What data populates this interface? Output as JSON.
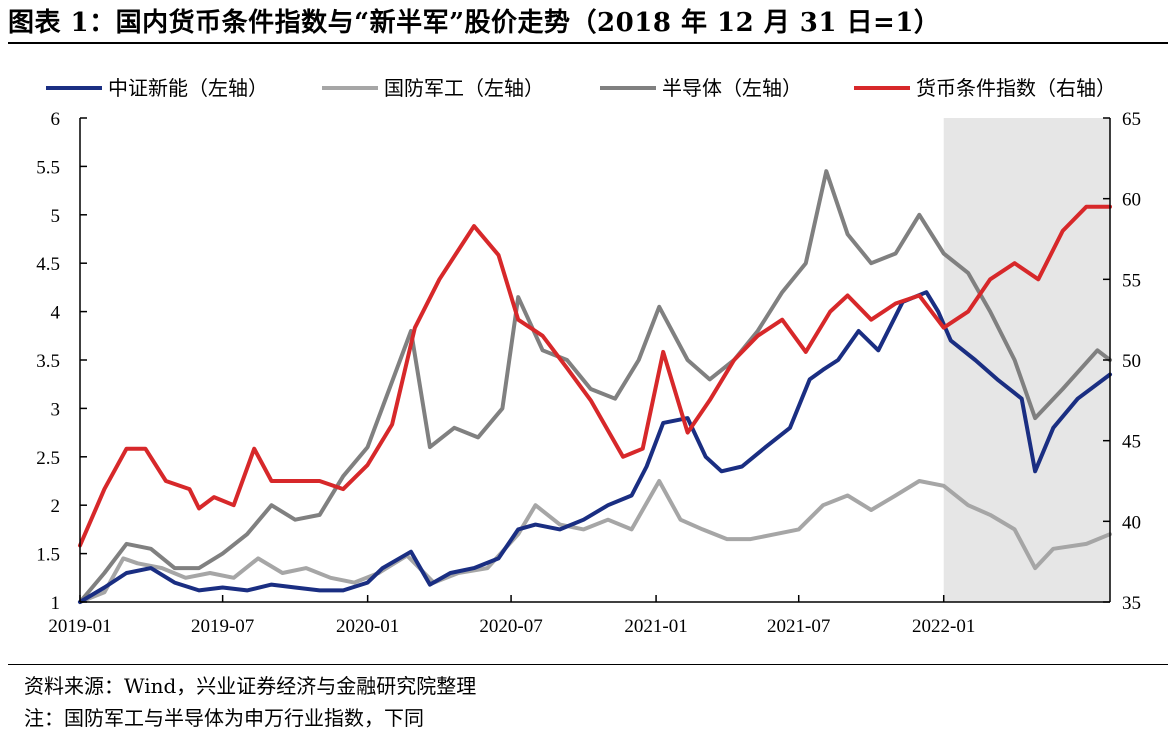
{
  "title": "图表 1：国内货币条件指数与“新半军”股价走势（2018 年 12 月 31 日=1）",
  "source": "资料来源：Wind，兴业证券经济与金融研究院整理",
  "note": "注：国防军工与半导体为申万行业指数，下同",
  "chart_data": {
    "type": "line",
    "legend_position": "top",
    "grid": false,
    "x_ticks": [
      "2019-01",
      "2019-07",
      "2020-01",
      "2020-07",
      "2021-01",
      "2021-07",
      "2022-01"
    ],
    "x_range": [
      "2019-01-01",
      "2022-07-31"
    ],
    "y_left": {
      "range": [
        1,
        6
      ],
      "ticks": [
        "1",
        "1.5",
        "2",
        "2.5",
        "3",
        "3.5",
        "4",
        "4.5",
        "5",
        "5.5",
        "6"
      ]
    },
    "y_right": {
      "range": [
        35,
        65
      ],
      "ticks": [
        "35",
        "40",
        "45",
        "50",
        "55",
        "60",
        "65"
      ]
    },
    "shaded_region": {
      "from": "2022-01-01",
      "to": "2022-07-31",
      "color": "#e6e6e6"
    },
    "series": [
      {
        "name": "中证新能（左轴）",
        "axis": "left",
        "color": "#1a2e82",
        "width": 4,
        "points": [
          [
            "2019-01-01",
            1.0
          ],
          [
            "2019-02-01",
            1.15
          ],
          [
            "2019-03-01",
            1.3
          ],
          [
            "2019-04-01",
            1.35
          ],
          [
            "2019-05-01",
            1.2
          ],
          [
            "2019-06-01",
            1.12
          ],
          [
            "2019-07-01",
            1.15
          ],
          [
            "2019-08-01",
            1.12
          ],
          [
            "2019-09-01",
            1.18
          ],
          [
            "2019-10-01",
            1.15
          ],
          [
            "2019-11-01",
            1.12
          ],
          [
            "2019-12-01",
            1.12
          ],
          [
            "2020-01-01",
            1.2
          ],
          [
            "2020-01-20",
            1.35
          ],
          [
            "2020-02-25",
            1.52
          ],
          [
            "2020-03-20",
            1.18
          ],
          [
            "2020-04-15",
            1.3
          ],
          [
            "2020-05-15",
            1.35
          ],
          [
            "2020-06-15",
            1.45
          ],
          [
            "2020-07-10",
            1.75
          ],
          [
            "2020-08-01",
            1.8
          ],
          [
            "2020-09-01",
            1.75
          ],
          [
            "2020-10-01",
            1.85
          ],
          [
            "2020-11-01",
            2.0
          ],
          [
            "2020-12-01",
            2.1
          ],
          [
            "2020-12-20",
            2.4
          ],
          [
            "2021-01-10",
            2.85
          ],
          [
            "2021-02-10",
            2.9
          ],
          [
            "2021-03-05",
            2.5
          ],
          [
            "2021-03-25",
            2.35
          ],
          [
            "2021-04-20",
            2.4
          ],
          [
            "2021-05-20",
            2.6
          ],
          [
            "2021-06-20",
            2.8
          ],
          [
            "2021-07-15",
            3.3
          ],
          [
            "2021-08-01",
            3.4
          ],
          [
            "2021-08-20",
            3.5
          ],
          [
            "2021-09-15",
            3.8
          ],
          [
            "2021-10-10",
            3.6
          ],
          [
            "2021-11-10",
            4.1
          ],
          [
            "2021-12-10",
            4.2
          ],
          [
            "2021-12-25",
            4.0
          ],
          [
            "2022-01-10",
            3.7
          ],
          [
            "2022-02-10",
            3.5
          ],
          [
            "2022-03-10",
            3.3
          ],
          [
            "2022-04-10",
            3.1
          ],
          [
            "2022-04-27",
            2.35
          ],
          [
            "2022-05-20",
            2.8
          ],
          [
            "2022-06-20",
            3.1
          ],
          [
            "2022-07-31",
            3.35
          ]
        ]
      },
      {
        "name": "国防军工（左轴）",
        "axis": "left",
        "color": "#a6a6a6",
        "width": 4,
        "points": [
          [
            "2019-01-01",
            1.0
          ],
          [
            "2019-02-01",
            1.1
          ],
          [
            "2019-02-25",
            1.45
          ],
          [
            "2019-03-15",
            1.4
          ],
          [
            "2019-04-15",
            1.35
          ],
          [
            "2019-05-15",
            1.25
          ],
          [
            "2019-06-15",
            1.3
          ],
          [
            "2019-07-15",
            1.25
          ],
          [
            "2019-08-15",
            1.45
          ],
          [
            "2019-09-15",
            1.3
          ],
          [
            "2019-10-15",
            1.35
          ],
          [
            "2019-11-15",
            1.25
          ],
          [
            "2019-12-15",
            1.2
          ],
          [
            "2020-01-15",
            1.3
          ],
          [
            "2020-02-20",
            1.48
          ],
          [
            "2020-03-25",
            1.2
          ],
          [
            "2020-04-25",
            1.3
          ],
          [
            "2020-06-01",
            1.35
          ],
          [
            "2020-07-10",
            1.7
          ],
          [
            "2020-08-01",
            2.0
          ],
          [
            "2020-09-01",
            1.8
          ],
          [
            "2020-10-01",
            1.75
          ],
          [
            "2020-11-01",
            1.85
          ],
          [
            "2020-12-01",
            1.75
          ],
          [
            "2021-01-05",
            2.25
          ],
          [
            "2021-02-01",
            1.85
          ],
          [
            "2021-03-01",
            1.75
          ],
          [
            "2021-04-01",
            1.65
          ],
          [
            "2021-05-01",
            1.65
          ],
          [
            "2021-06-01",
            1.7
          ],
          [
            "2021-07-01",
            1.75
          ],
          [
            "2021-08-01",
            2.0
          ],
          [
            "2021-09-01",
            2.1
          ],
          [
            "2021-10-01",
            1.95
          ],
          [
            "2021-11-01",
            2.1
          ],
          [
            "2021-12-01",
            2.25
          ],
          [
            "2022-01-01",
            2.2
          ],
          [
            "2022-02-01",
            2.0
          ],
          [
            "2022-03-01",
            1.9
          ],
          [
            "2022-04-01",
            1.75
          ],
          [
            "2022-04-27",
            1.35
          ],
          [
            "2022-05-20",
            1.55
          ],
          [
            "2022-07-01",
            1.6
          ],
          [
            "2022-07-31",
            1.7
          ]
        ]
      },
      {
        "name": "半导体（左轴）",
        "axis": "left",
        "color": "#808080",
        "width": 4,
        "points": [
          [
            "2019-01-01",
            1.0
          ],
          [
            "2019-02-01",
            1.3
          ],
          [
            "2019-03-01",
            1.6
          ],
          [
            "2019-04-01",
            1.55
          ],
          [
            "2019-05-01",
            1.35
          ],
          [
            "2019-06-01",
            1.35
          ],
          [
            "2019-07-01",
            1.5
          ],
          [
            "2019-08-01",
            1.7
          ],
          [
            "2019-09-01",
            2.0
          ],
          [
            "2019-10-01",
            1.85
          ],
          [
            "2019-11-01",
            1.9
          ],
          [
            "2019-12-01",
            2.3
          ],
          [
            "2020-01-01",
            2.6
          ],
          [
            "2020-02-25",
            3.8
          ],
          [
            "2020-03-20",
            2.6
          ],
          [
            "2020-04-20",
            2.8
          ],
          [
            "2020-05-20",
            2.7
          ],
          [
            "2020-06-20",
            3.0
          ],
          [
            "2020-07-10",
            4.15
          ],
          [
            "2020-08-10",
            3.6
          ],
          [
            "2020-09-10",
            3.5
          ],
          [
            "2020-10-10",
            3.2
          ],
          [
            "2020-11-10",
            3.1
          ],
          [
            "2020-12-10",
            3.5
          ],
          [
            "2021-01-05",
            4.05
          ],
          [
            "2021-02-10",
            3.5
          ],
          [
            "2021-03-10",
            3.3
          ],
          [
            "2021-04-10",
            3.5
          ],
          [
            "2021-05-10",
            3.8
          ],
          [
            "2021-06-10",
            4.2
          ],
          [
            "2021-07-10",
            4.5
          ],
          [
            "2021-08-05",
            5.45
          ],
          [
            "2021-09-01",
            4.8
          ],
          [
            "2021-10-01",
            4.5
          ],
          [
            "2021-11-01",
            4.6
          ],
          [
            "2021-12-01",
            5.0
          ],
          [
            "2022-01-01",
            4.6
          ],
          [
            "2022-02-01",
            4.4
          ],
          [
            "2022-03-01",
            4.0
          ],
          [
            "2022-04-01",
            3.5
          ],
          [
            "2022-04-27",
            2.9
          ],
          [
            "2022-06-01",
            3.2
          ],
          [
            "2022-07-15",
            3.6
          ],
          [
            "2022-07-31",
            3.5
          ]
        ]
      },
      {
        "name": "货币条件指数（右轴）",
        "axis": "right",
        "color": "#d7282a",
        "width": 4,
        "points": [
          [
            "2019-01-01",
            38.5
          ],
          [
            "2019-02-01",
            42.0
          ],
          [
            "2019-03-01",
            44.5
          ],
          [
            "2019-03-25",
            44.5
          ],
          [
            "2019-04-20",
            42.5
          ],
          [
            "2019-05-20",
            42.0
          ],
          [
            "2019-06-01",
            40.8
          ],
          [
            "2019-06-20",
            41.5
          ],
          [
            "2019-07-15",
            41.0
          ],
          [
            "2019-08-10",
            44.5
          ],
          [
            "2019-09-01",
            42.5
          ],
          [
            "2019-10-01",
            42.5
          ],
          [
            "2019-11-01",
            42.5
          ],
          [
            "2019-12-01",
            42.0
          ],
          [
            "2020-01-01",
            43.5
          ],
          [
            "2020-02-01",
            46.0
          ],
          [
            "2020-03-01",
            52.0
          ],
          [
            "2020-04-01",
            55.0
          ],
          [
            "2020-05-15",
            58.3
          ],
          [
            "2020-06-15",
            56.5
          ],
          [
            "2020-07-10",
            52.5
          ],
          [
            "2020-08-10",
            51.5
          ],
          [
            "2020-09-10",
            49.5
          ],
          [
            "2020-10-10",
            47.5
          ],
          [
            "2020-11-20",
            44.0
          ],
          [
            "2020-12-15",
            44.5
          ],
          [
            "2021-01-10",
            50.5
          ],
          [
            "2021-02-10",
            45.5
          ],
          [
            "2021-03-10",
            47.5
          ],
          [
            "2021-04-10",
            50.0
          ],
          [
            "2021-05-10",
            51.5
          ],
          [
            "2021-06-10",
            52.5
          ],
          [
            "2021-07-10",
            50.5
          ],
          [
            "2021-08-10",
            53.0
          ],
          [
            "2021-09-01",
            54.0
          ],
          [
            "2021-10-01",
            52.5
          ],
          [
            "2021-11-01",
            53.5
          ],
          [
            "2021-12-01",
            54.0
          ],
          [
            "2022-01-01",
            52.0
          ],
          [
            "2022-02-01",
            53.0
          ],
          [
            "2022-03-01",
            55.0
          ],
          [
            "2022-04-01",
            56.0
          ],
          [
            "2022-05-01",
            55.0
          ],
          [
            "2022-06-01",
            58.0
          ],
          [
            "2022-07-01",
            59.5
          ],
          [
            "2022-07-31",
            59.5
          ]
        ]
      }
    ]
  }
}
